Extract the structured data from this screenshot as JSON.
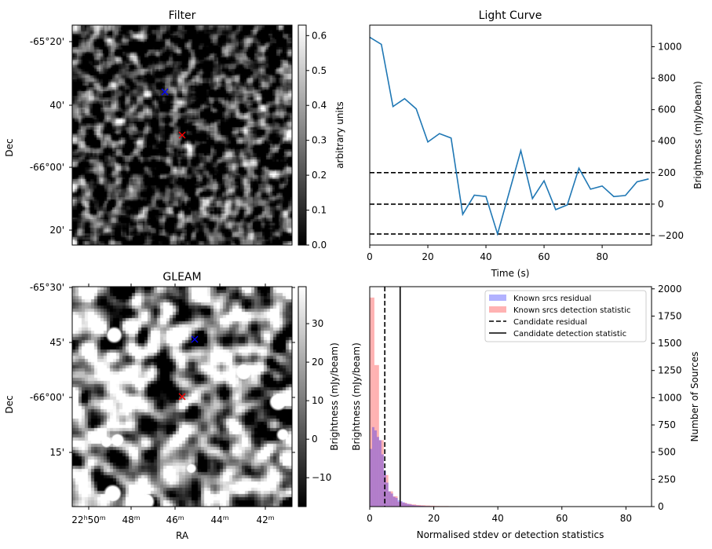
{
  "chart_data": [
    {
      "type": "heatmap",
      "title": "Filter",
      "ylabel": "Dec",
      "y_ticks": [
        "-65°20'",
        "40'",
        "-66°00'",
        "20'"
      ],
      "colorbar": {
        "label": "arbitrary units",
        "range": [
          0.0,
          0.63
        ],
        "ticks": [
          "0.0",
          "0.1",
          "0.2",
          "0.3",
          "0.4",
          "0.5",
          "0.6"
        ],
        "tick_values": [
          0,
          0.1,
          0.2,
          0.3,
          0.4,
          0.5,
          0.6
        ]
      },
      "markers": [
        {
          "symbol": "x",
          "color": "#0000ff"
        },
        {
          "symbol": "x",
          "color": "#ff0000"
        }
      ]
    },
    {
      "type": "line",
      "title": "Light Curve",
      "xlabel": "Time (s)",
      "ylabel": "Brightness (mJy/beam)",
      "xlim": [
        0,
        97
      ],
      "ylim": [
        -260,
        1137
      ],
      "x_ticks": [
        0,
        20,
        40,
        60,
        80
      ],
      "y_ticks": [
        -200,
        0,
        200,
        400,
        600,
        800,
        1000
      ],
      "y_tick_labels": [
        "−200",
        "0",
        "200",
        "400",
        "600",
        "800",
        "1000"
      ],
      "x": [
        0,
        4,
        8,
        12,
        16,
        20,
        24,
        28,
        32,
        36,
        40,
        44,
        48,
        52,
        56,
        60,
        64,
        68,
        72,
        76,
        80,
        84,
        88,
        92,
        96
      ],
      "y": [
        1060,
        1015,
        620,
        670,
        605,
        395,
        448,
        420,
        -65,
        57,
        48,
        -190,
        75,
        340,
        35,
        148,
        -35,
        -5,
        228,
        95,
        115,
        48,
        55,
        142,
        160
      ],
      "color": "#1f77b4",
      "hlines": [
        200,
        0,
        -190
      ]
    },
    {
      "type": "heatmap",
      "title": "GLEAM",
      "xlabel": "RA",
      "ylabel": "Dec",
      "x_ticks": [
        {
          "h": "22",
          "hs": "h",
          "m": "50",
          "ms": "m"
        },
        {
          "h": "",
          "hs": "",
          "m": "48",
          "ms": "m"
        },
        {
          "h": "",
          "hs": "",
          "m": "46",
          "ms": "m"
        },
        {
          "h": "",
          "hs": "",
          "m": "44",
          "ms": "m"
        },
        {
          "h": "",
          "hs": "",
          "m": "42",
          "ms": "m"
        }
      ],
      "y_ticks": [
        "-65°30'",
        "45'",
        "-66°00'",
        "15'"
      ],
      "colorbar": {
        "label": "Brightness (mJy/beam)",
        "range": [
          -17.5,
          39.6
        ],
        "ticks": [
          "−10",
          "0",
          "10",
          "20",
          "30"
        ],
        "tick_values": [
          -10,
          0,
          10,
          20,
          30
        ]
      },
      "markers": [
        {
          "symbol": "x",
          "color": "#0000ff"
        },
        {
          "symbol": "x",
          "color": "#ff0000"
        }
      ]
    },
    {
      "type": "bar",
      "xlabel": "Normalised stdev or detection statistics",
      "ylabel_left": "Brightness (mJy/beam)",
      "ylabel": "Number of Sources",
      "xlim": [
        0,
        88
      ],
      "ylim": [
        0,
        2020
      ],
      "x_ticks": [
        0,
        20,
        40,
        60,
        80
      ],
      "y_ticks": [
        0,
        250,
        500,
        750,
        1000,
        1250,
        1500,
        1750,
        2000
      ],
      "series": [
        {
          "name": "Known srcs residual",
          "color": "#0000ff",
          "bin_width": 0.73,
          "values": [
            530,
            730,
            700,
            640,
            610,
            480,
            330,
            220,
            140,
            120,
            90,
            80,
            60,
            50,
            40,
            30,
            25,
            20,
            15,
            12,
            10,
            8,
            8,
            6,
            5,
            5,
            4,
            4,
            3,
            3,
            3,
            2,
            2,
            2,
            2,
            2,
            2,
            1,
            1,
            1,
            1,
            1,
            1,
            1,
            1,
            1,
            1,
            1,
            1,
            1,
            1,
            1,
            1,
            1,
            1
          ]
        },
        {
          "name": "Known srcs detection statistic",
          "color": "#ff0000",
          "bin_width": 1.45,
          "values": [
            1920,
            1300,
            610,
            290,
            140,
            95,
            45,
            35,
            25,
            20,
            15,
            12,
            10,
            8,
            6,
            5,
            5,
            4,
            4,
            3,
            3,
            3,
            2,
            2,
            2,
            2,
            2,
            2,
            1,
            1,
            2,
            1,
            1,
            1,
            1,
            1,
            1,
            1,
            1,
            1,
            1,
            1,
            1,
            1,
            1,
            1,
            1,
            1,
            1,
            1,
            1,
            1,
            1,
            1,
            1,
            1,
            1,
            2
          ]
        }
      ],
      "vlines": [
        {
          "name": "Candidate residual",
          "value": 4.7,
          "style": "dashed"
        },
        {
          "name": "Candidate detection statistic",
          "value": 9.5,
          "style": "solid"
        }
      ],
      "legend": "top-right"
    }
  ]
}
